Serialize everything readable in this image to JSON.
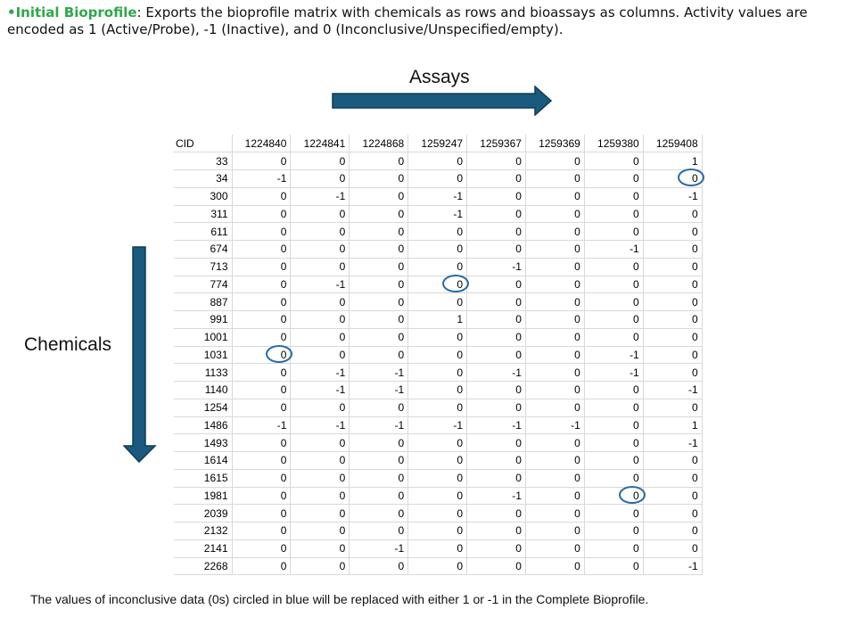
{
  "intro": {
    "title": "•Initial Bioprofile",
    "text": ": Exports the bioprofile matrix with chemicals as rows and bioassays as columns. Activity values are encoded as 1 (Active/Probe), -1 (Inactive), and 0 (Inconclusive/Unspecified/empty)."
  },
  "assays_label": "Assays",
  "chemicals_label": "Chemicals",
  "colors": {
    "title_green": "#2fa84a",
    "arrow_blue": "#1a5a7e",
    "circle_blue": "#2a6aa8"
  },
  "table": {
    "cid_header": "CID",
    "assay_ids": [
      "1224840",
      "1224841",
      "1224868",
      "1259247",
      "1259367",
      "1259369",
      "1259380",
      "1259408"
    ],
    "rows": [
      {
        "cid": "33",
        "values": [
          "0",
          "0",
          "0",
          "0",
          "0",
          "0",
          "0",
          "1"
        ]
      },
      {
        "cid": "34",
        "values": [
          "-1",
          "0",
          "0",
          "0",
          "0",
          "0",
          "0",
          "0"
        ]
      },
      {
        "cid": "300",
        "values": [
          "0",
          "-1",
          "0",
          "-1",
          "0",
          "0",
          "0",
          "-1"
        ]
      },
      {
        "cid": "311",
        "values": [
          "0",
          "0",
          "0",
          "-1",
          "0",
          "0",
          "0",
          "0"
        ]
      },
      {
        "cid": "611",
        "values": [
          "0",
          "0",
          "0",
          "0",
          "0",
          "0",
          "0",
          "0"
        ]
      },
      {
        "cid": "674",
        "values": [
          "0",
          "0",
          "0",
          "0",
          "0",
          "0",
          "-1",
          "0"
        ]
      },
      {
        "cid": "713",
        "values": [
          "0",
          "0",
          "0",
          "0",
          "-1",
          "0",
          "0",
          "0"
        ]
      },
      {
        "cid": "774",
        "values": [
          "0",
          "-1",
          "0",
          "0",
          "0",
          "0",
          "0",
          "0"
        ]
      },
      {
        "cid": "887",
        "values": [
          "0",
          "0",
          "0",
          "0",
          "0",
          "0",
          "0",
          "0"
        ]
      },
      {
        "cid": "991",
        "values": [
          "0",
          "0",
          "0",
          "1",
          "0",
          "0",
          "0",
          "0"
        ]
      },
      {
        "cid": "1001",
        "values": [
          "0",
          "0",
          "0",
          "0",
          "0",
          "0",
          "0",
          "0"
        ]
      },
      {
        "cid": "1031",
        "values": [
          "0",
          "0",
          "0",
          "0",
          "0",
          "0",
          "-1",
          "0"
        ]
      },
      {
        "cid": "1133",
        "values": [
          "0",
          "-1",
          "-1",
          "0",
          "-1",
          "0",
          "-1",
          "0"
        ]
      },
      {
        "cid": "1140",
        "values": [
          "0",
          "-1",
          "-1",
          "0",
          "0",
          "0",
          "0",
          "-1"
        ]
      },
      {
        "cid": "1254",
        "values": [
          "0",
          "0",
          "0",
          "0",
          "0",
          "0",
          "0",
          "0"
        ]
      },
      {
        "cid": "1486",
        "values": [
          "-1",
          "-1",
          "-1",
          "-1",
          "-1",
          "-1",
          "0",
          "1"
        ]
      },
      {
        "cid": "1493",
        "values": [
          "0",
          "0",
          "0",
          "0",
          "0",
          "0",
          "0",
          "-1"
        ]
      },
      {
        "cid": "1614",
        "values": [
          "0",
          "0",
          "0",
          "0",
          "0",
          "0",
          "0",
          "0"
        ]
      },
      {
        "cid": "1615",
        "values": [
          "0",
          "0",
          "0",
          "0",
          "0",
          "0",
          "0",
          "0"
        ]
      },
      {
        "cid": "1981",
        "values": [
          "0",
          "0",
          "0",
          "0",
          "-1",
          "0",
          "0",
          "0"
        ]
      },
      {
        "cid": "2039",
        "values": [
          "0",
          "0",
          "0",
          "0",
          "0",
          "0",
          "0",
          "0"
        ]
      },
      {
        "cid": "2132",
        "values": [
          "0",
          "0",
          "0",
          "0",
          "0",
          "0",
          "0",
          "0"
        ]
      },
      {
        "cid": "2141",
        "values": [
          "0",
          "0",
          "-1",
          "0",
          "0",
          "0",
          "0",
          "0"
        ]
      },
      {
        "cid": "2268",
        "values": [
          "0",
          "0",
          "0",
          "0",
          "0",
          "0",
          "0",
          "-1"
        ]
      }
    ],
    "circled_cells": [
      {
        "cid": "34",
        "assay": "1259408"
      },
      {
        "cid": "774",
        "assay": "1259247"
      },
      {
        "cid": "1031",
        "assay": "1224840"
      },
      {
        "cid": "1981",
        "assay": "1259380"
      }
    ]
  },
  "footnote": "The values of inconclusive data (0s) circled in blue will be replaced with either 1 or -1 in the Complete Bioprofile."
}
